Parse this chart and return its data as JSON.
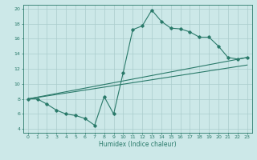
{
  "title": "",
  "xlabel": "Humidex (Indice chaleur)",
  "xlim": [
    -0.5,
    23.5
  ],
  "ylim": [
    3.5,
    20.5
  ],
  "xticks": [
    0,
    1,
    2,
    3,
    4,
    5,
    6,
    7,
    8,
    9,
    10,
    11,
    12,
    13,
    14,
    15,
    16,
    17,
    18,
    19,
    20,
    21,
    22,
    23
  ],
  "yticks": [
    4,
    6,
    8,
    10,
    12,
    14,
    16,
    18,
    20
  ],
  "bg_color": "#cce8e8",
  "grid_color": "#aacccc",
  "line_color": "#2a7a6a",
  "series1_x": [
    0,
    1,
    2,
    3,
    4,
    5,
    6,
    7,
    8,
    9,
    10,
    11,
    12,
    13,
    14,
    15,
    16,
    17,
    18,
    19,
    20,
    21,
    22,
    23
  ],
  "series1_y": [
    8.0,
    8.0,
    7.3,
    6.5,
    6.0,
    5.8,
    5.4,
    4.5,
    8.3,
    6.0,
    11.5,
    17.2,
    17.7,
    19.8,
    18.3,
    17.4,
    17.3,
    16.9,
    16.2,
    16.2,
    15.0,
    13.5,
    13.3,
    13.5
  ],
  "series2_x": [
    0,
    23
  ],
  "series2_y": [
    8.0,
    13.5
  ],
  "series3_x": [
    0,
    23
  ],
  "series3_y": [
    8.0,
    12.5
  ]
}
